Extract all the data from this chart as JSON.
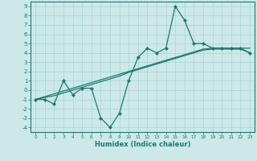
{
  "xlabel": "Humidex (Indice chaleur)",
  "background_color": "#cce8e8",
  "line_color": "#1a7a6e",
  "grid_color": "#aad4d4",
  "x_data": [
    0,
    1,
    2,
    3,
    4,
    5,
    6,
    7,
    8,
    9,
    10,
    11,
    12,
    13,
    14,
    15,
    16,
    17,
    18,
    19,
    20,
    21,
    22,
    23
  ],
  "y_curve": [
    -1,
    -1,
    -1.5,
    1,
    -0.5,
    0.2,
    0.2,
    -3.0,
    -4,
    -2.5,
    1,
    3.5,
    4.5,
    4,
    4.5,
    9,
    7.5,
    5,
    5,
    4.5,
    4.5,
    4.5,
    4.5,
    4
  ],
  "y_line1": [
    -1,
    -0.7,
    -0.4,
    -0.1,
    0.2,
    0.5,
    0.8,
    1.1,
    1.4,
    1.7,
    2.0,
    2.3,
    2.6,
    2.9,
    3.2,
    3.5,
    3.8,
    4.1,
    4.4,
    4.5,
    4.5,
    4.5,
    4.5,
    4.5
  ],
  "y_line2": [
    -1,
    -0.8,
    -0.6,
    -0.3,
    0.0,
    0.3,
    0.6,
    0.9,
    1.2,
    1.5,
    1.9,
    2.2,
    2.5,
    2.8,
    3.1,
    3.4,
    3.7,
    4.0,
    4.3,
    4.4,
    4.4,
    4.4,
    4.4,
    4.0
  ],
  "xlim": [
    -0.5,
    23.5
  ],
  "ylim": [
    -4.5,
    9.5
  ],
  "yticks": [
    -4,
    -3,
    -2,
    -1,
    0,
    1,
    2,
    3,
    4,
    5,
    6,
    7,
    8,
    9
  ],
  "xticks": [
    0,
    1,
    2,
    3,
    4,
    5,
    6,
    7,
    8,
    9,
    10,
    11,
    12,
    13,
    14,
    15,
    16,
    17,
    18,
    19,
    20,
    21,
    22,
    23
  ]
}
